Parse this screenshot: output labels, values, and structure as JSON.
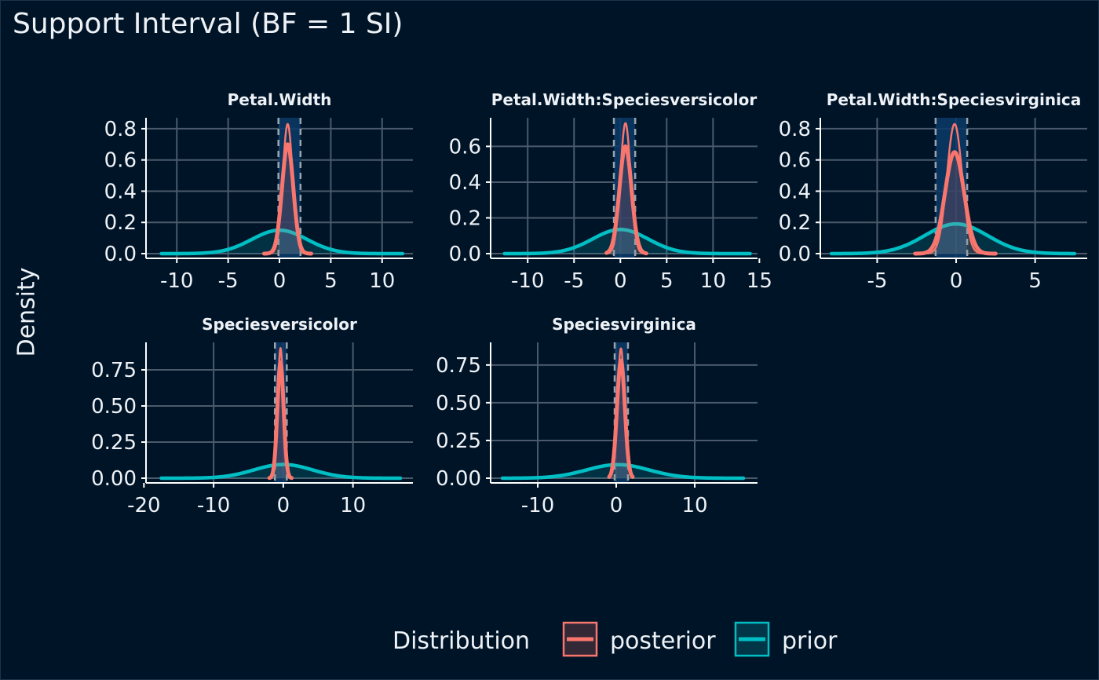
{
  "chart_data": {
    "type": "line",
    "title": "Support Interval (BF = 1 SI)",
    "ylabel": "Density",
    "xlabel": "",
    "grid": true,
    "legend": {
      "title": "Distribution",
      "placement": "bottom",
      "entries": [
        {
          "name": "posterior",
          "color": "#f8766d"
        },
        {
          "name": "prior",
          "color": "#00bfc4"
        }
      ]
    },
    "colors": {
      "background": "#001428",
      "grid": "#4a5a6a",
      "axis": "#ffffff",
      "text": "#eef2f6",
      "interval_fill": "#0a3a66",
      "posterior": "#f8766d",
      "prior": "#00bfc4"
    },
    "panels": [
      {
        "strip": "Petal.Width",
        "xlim": [
          -13,
          13
        ],
        "ylim": [
          0,
          0.87
        ],
        "xticks": [
          -10,
          -5,
          0,
          5,
          10
        ],
        "xtick_labels": [
          "-10",
          "-5",
          "0",
          "5",
          "10"
        ],
        "yticks": [
          0,
          0.2,
          0.4,
          0.6,
          0.8
        ],
        "ytick_labels": [
          "0.0",
          "0.2",
          "0.4",
          "0.6",
          "0.8"
        ],
        "prior": {
          "mean": 0,
          "sd": 2.7,
          "peak": 0.15,
          "xrange": [
            -11.5,
            12
          ]
        },
        "posteriors": [
          {
            "mean": 0.8,
            "sd": 0.48,
            "peak": 0.83,
            "xrange": [
              -1.5,
              3.1
            ],
            "width": "thin"
          },
          {
            "mean": 0.8,
            "sd": 0.55,
            "peak": 0.7,
            "xrange": [
              -1.5,
              3.1
            ],
            "width": "thick"
          }
        ],
        "support_interval": [
          -0.1,
          2.05
        ]
      },
      {
        "strip": "Petal.Width:Speciesversicolor",
        "xlim": [
          -14,
          14.8
        ],
        "ylim": [
          0,
          0.76
        ],
        "xticks": [
          -10,
          -5,
          0,
          5,
          10,
          15
        ],
        "xtick_labels": [
          "-10",
          "-5",
          "0",
          "5",
          "10",
          "15"
        ],
        "yticks": [
          0,
          0.2,
          0.4,
          0.6
        ],
        "ytick_labels": [
          "0.0",
          "0.2",
          "0.4",
          "0.6"
        ],
        "prior": {
          "mean": 0,
          "sd": 3.0,
          "peak": 0.135,
          "xrange": [
            -12.5,
            14
          ]
        },
        "posteriors": [
          {
            "mean": 0.55,
            "sd": 0.55,
            "peak": 0.73,
            "xrange": [
              -1.5,
              2.8
            ],
            "width": "thin"
          },
          {
            "mean": 0.55,
            "sd": 0.65,
            "peak": 0.6,
            "xrange": [
              -1.5,
              2.8
            ],
            "width": "thick"
          }
        ],
        "support_interval": [
          -0.7,
          1.6
        ]
      },
      {
        "strip": "Petal.Width:Speciesvirginica",
        "xlim": [
          -8.6,
          8.3
        ],
        "ylim": [
          0,
          0.87
        ],
        "xticks": [
          -5,
          0,
          5
        ],
        "xtick_labels": [
          "-5",
          "0",
          "5"
        ],
        "yticks": [
          0,
          0.2,
          0.4,
          0.6,
          0.8
        ],
        "ytick_labels": [
          "0.0",
          "0.2",
          "0.4",
          "0.6",
          "0.8"
        ],
        "prior": {
          "mean": 0,
          "sd": 2.0,
          "peak": 0.19,
          "xrange": [
            -7.9,
            7.5
          ]
        },
        "posteriors": [
          {
            "mean": -0.1,
            "sd": 0.48,
            "peak": 0.83,
            "xrange": [
              -2.6,
              2.5
            ],
            "width": "thin"
          },
          {
            "mean": -0.1,
            "sd": 0.6,
            "peak": 0.65,
            "xrange": [
              -2.6,
              2.5
            ],
            "width": "thick"
          }
        ],
        "support_interval": [
          -1.3,
          0.7
        ]
      },
      {
        "strip": "Speciesversicolor",
        "xlim": [
          -19.7,
          18.6
        ],
        "ylim": [
          0,
          0.94
        ],
        "xticks": [
          -20,
          -10,
          0,
          10
        ],
        "xtick_labels": [
          "-20",
          "-10",
          "0",
          "10"
        ],
        "yticks": [
          0,
          0.25,
          0.5,
          0.75
        ],
        "ytick_labels": [
          "0.00",
          "0.25",
          "0.50",
          "0.75"
        ],
        "prior": {
          "mean": 0,
          "sd": 4.2,
          "peak": 0.095,
          "xrange": [
            -17.5,
            16.8
          ]
        },
        "posteriors": [
          {
            "mean": -0.4,
            "sd": 0.4,
            "peak": 0.9,
            "xrange": [
              -2.0,
              1.2
            ],
            "width": "thin"
          },
          {
            "mean": -0.4,
            "sd": 0.45,
            "peak": 0.8,
            "xrange": [
              -2.0,
              1.2
            ],
            "width": "thick"
          }
        ],
        "support_interval": [
          -1.2,
          0.5
        ]
      },
      {
        "strip": "Speciesvirginica",
        "xlim": [
          -16,
          18
        ],
        "ylim": [
          0,
          0.9
        ],
        "xticks": [
          -10,
          0,
          10
        ],
        "xtick_labels": [
          "-10",
          "0",
          "10"
        ],
        "yticks": [
          0,
          0.25,
          0.5,
          0.75
        ],
        "ytick_labels": [
          "0.00",
          "0.25",
          "0.50",
          "0.75"
        ],
        "prior": {
          "mean": 0.2,
          "sd": 4.0,
          "peak": 0.09,
          "xrange": [
            -14.5,
            16.2
          ]
        },
        "posteriors": [
          {
            "mean": 0.6,
            "sd": 0.45,
            "peak": 0.86,
            "xrange": [
              -0.9,
              2.1
            ],
            "width": "thin"
          },
          {
            "mean": 0.6,
            "sd": 0.5,
            "peak": 0.78,
            "xrange": [
              -0.9,
              2.1
            ],
            "width": "thick"
          }
        ],
        "support_interval": [
          -0.2,
          1.5
        ]
      }
    ]
  }
}
